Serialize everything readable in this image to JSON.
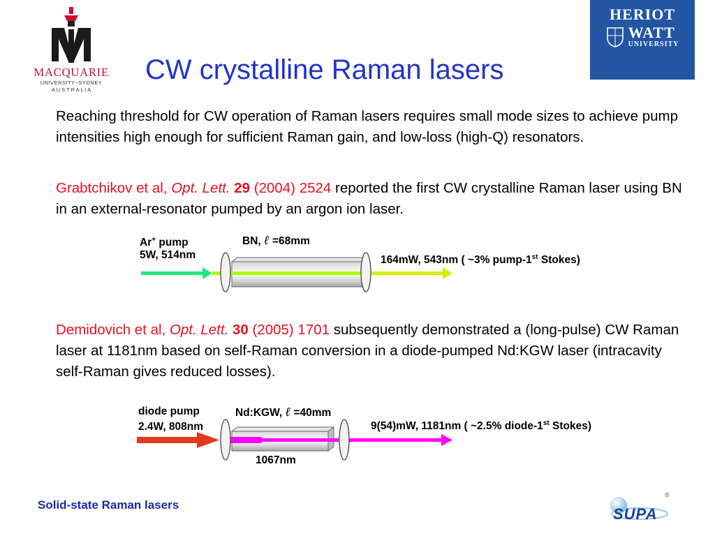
{
  "slide": {
    "title": "CW crystalline Raman lasers",
    "footer": "Solid-state Raman lasers"
  },
  "logos": {
    "macquarie": {
      "name": "MACQUARIE",
      "line2": "UNIVERSITY~SYDNEY",
      "line3": "A U S T R A L I A",
      "color": "#c8102e"
    },
    "heriot_watt": {
      "line1": "HERIOT",
      "line2": "WATT",
      "line3": "UNIVERSITY",
      "color": "#2255a4"
    },
    "supa": {
      "text": "SUPA",
      "mark": "®"
    }
  },
  "para1": "Reaching threshold for CW operation of Raman lasers requires small mode sizes to achieve pump intensities high enough for sufficient Raman gain, and low-loss (high-Q) resonators.",
  "para2": {
    "authors": "Grabtchikov et al, ",
    "journal": "Opt. Lett.",
    "volume": " 29",
    "citation": " (2004) 2524",
    "text": " reported the first CW crystalline Raman laser using BN in an external-resonator pumped by an argon ion laser."
  },
  "para3": {
    "authors": "Demidovich et al, ",
    "journal": "Opt. Lett.",
    "volume": " 30",
    "citation": " (2005) 1701",
    "text": " subsequently  demonstrated a (long-pulse) CW Raman laser at 1181nm based on self-Raman conversion in a diode-pumped Nd:KGW laser (intracavity self-Raman gives reduced losses)."
  },
  "diagram1": {
    "pump_line1_pre": "Ar",
    "pump_line1_sup": "+",
    "pump_line1_post": " pump",
    "pump_line2": "5W, 514nm",
    "crystal_pre": "BN, ",
    "crystal_ell": "ℓ",
    "crystal_post": " =68mm",
    "output_pre": "164mW, 543nm ( ~3% pump-1",
    "output_sup": "st",
    "output_post": " Stokes)"
  },
  "diagram2": {
    "pump_line1": "diode pump",
    "pump_line2": "2.4W, 808nm",
    "crystal_pre": "Nd:KGW, ",
    "crystal_ell": "ℓ",
    "crystal_post": " =40mm",
    "output_pre": "9(54)mW, 1181nm ( ~2.5% diode-1",
    "output_sup": "st",
    "output_post": " Stokes)",
    "intracavity": "1067nm"
  }
}
